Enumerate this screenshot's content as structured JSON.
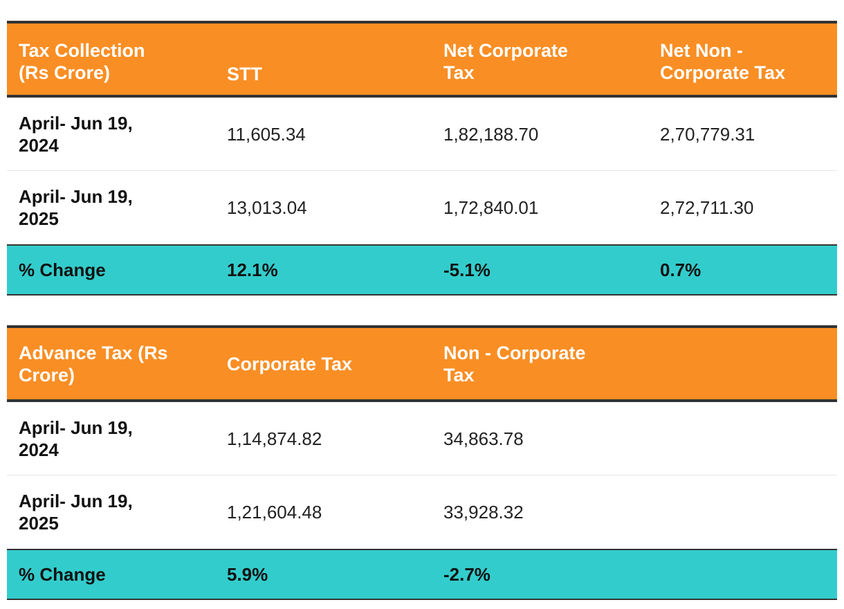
{
  "tables": [
    {
      "headers": [
        "Tax Collection (Rs Crore)",
        "STT",
        "Net Corporate Tax",
        "Net Non - Corporate Tax"
      ],
      "rows": [
        {
          "label": "April- Jun 19, 2024",
          "values": [
            "11,605.34",
            "1,82,188.70",
            "2,70,779.31"
          ]
        },
        {
          "label": "April- Jun 19, 2025",
          "values": [
            "13,013.04",
            "1,72,840.01",
            "2,72,711.30"
          ]
        }
      ],
      "change": {
        "label": "% Change",
        "values": [
          "12.1%",
          "-5.1%",
          "0.7%"
        ]
      }
    },
    {
      "headers": [
        "Advance Tax (Rs Crore)",
        "Corporate Tax",
        "Non - Corporate Tax",
        ""
      ],
      "rows": [
        {
          "label": "April- Jun 19, 2024",
          "values": [
            "1,14,874.82",
            "34,863.78",
            ""
          ]
        },
        {
          "label": "April- Jun 19, 2025",
          "values": [
            "1,21,604.48",
            "33,928.32",
            ""
          ]
        }
      ],
      "change": {
        "label": "% Change",
        "values": [
          "5.9%",
          "-2.7%",
          ""
        ]
      }
    }
  ],
  "colors": {
    "header_bg": "#f98e24",
    "change_bg": "#33cccc",
    "border": "#333333"
  }
}
